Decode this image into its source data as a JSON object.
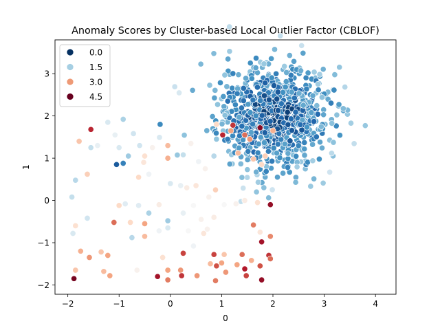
{
  "chart_data": {
    "type": "scatter",
    "title": "Anomaly Scores by Cluster-based Local Outlier Factor (CBLOF)",
    "xlabel": "0",
    "ylabel": "1",
    "xlim": [
      -2.25,
      4.4
    ],
    "ylim": [
      -2.22,
      3.8
    ],
    "xticks": [
      -2,
      -1,
      0,
      1,
      2,
      3,
      4
    ],
    "yticks": [
      -2,
      -1,
      0,
      1,
      2,
      3
    ],
    "grid": false,
    "legend_position": "top-left",
    "colormap": "RdBu_r",
    "score_range": [
      0,
      5
    ],
    "legend": [
      {
        "label": "0.0",
        "score": 0.0,
        "color": "#053061"
      },
      {
        "label": "1.5",
        "score": 1.5,
        "color": "#a6cfe3"
      },
      {
        "label": "3.0",
        "score": 3.0,
        "color": "#ee9a76"
      },
      {
        "label": "4.5",
        "score": 4.5,
        "color": "#67001f"
      }
    ],
    "cluster_estimate": {
      "center": [
        2.0,
        2.0
      ],
      "spread": [
        0.55,
        0.6
      ],
      "count": 900
    },
    "outliers": [
      {
        "x": 1.22,
        "y": 1.78,
        "score": 4.3
      },
      {
        "x": 1.75,
        "y": 1.72,
        "score": 4.8
      },
      {
        "x": 1.45,
        "y": 1.55,
        "score": 3.9
      },
      {
        "x": 1.02,
        "y": 1.55,
        "score": 4.4
      },
      {
        "x": 1.32,
        "y": 1.12,
        "score": 3.3
      },
      {
        "x": 1.85,
        "y": 1.05,
        "score": 3.1
      },
      {
        "x": 1.62,
        "y": 0.98,
        "score": 3.2
      },
      {
        "x": 1.78,
        "y": 0.85,
        "score": 3.0
      },
      {
        "x": 1.55,
        "y": 1.45,
        "score": 3.6
      },
      {
        "x": 2.0,
        "y": 1.65,
        "score": 3.4
      },
      {
        "x": 1.18,
        "y": 1.65,
        "score": 3.5
      },
      {
        "x": 0.9,
        "y": 1.8,
        "score": 3.0
      },
      {
        "x": -1.78,
        "y": 1.4,
        "score": 3.2
      },
      {
        "x": -1.55,
        "y": 1.68,
        "score": 4.4
      },
      {
        "x": -1.55,
        "y": 1.25,
        "score": 1.9
      },
      {
        "x": -1.42,
        "y": 1.3,
        "score": 2.3
      },
      {
        "x": -1.22,
        "y": 1.85,
        "score": 2.1
      },
      {
        "x": -1.08,
        "y": 1.55,
        "score": 2.3
      },
      {
        "x": -1.0,
        "y": 1.25,
        "score": 2.1
      },
      {
        "x": -0.92,
        "y": 1.92,
        "score": 1.7
      },
      {
        "x": -0.72,
        "y": 1.58,
        "score": 2.0
      },
      {
        "x": -0.6,
        "y": 1.3,
        "score": 2.0
      },
      {
        "x": -0.52,
        "y": 0.9,
        "score": 2.8
      },
      {
        "x": -0.35,
        "y": 1.25,
        "score": 2.6
      },
      {
        "x": -0.2,
        "y": 1.8,
        "score": 0.9
      },
      {
        "x": -0.05,
        "y": 1.3,
        "score": 3.3
      },
      {
        "x": -0.05,
        "y": 1.0,
        "score": 3.4
      },
      {
        "x": -1.92,
        "y": 0.08,
        "score": 1.9
      },
      {
        "x": -1.62,
        "y": 0.62,
        "score": 3.1
      },
      {
        "x": -1.62,
        "y": -0.42,
        "score": 2.0
      },
      {
        "x": -1.85,
        "y": 0.48,
        "score": 1.8
      },
      {
        "x": -1.05,
        "y": 0.85,
        "score": 0.4
      },
      {
        "x": -0.92,
        "y": 0.88,
        "score": 0.8
      },
      {
        "x": -0.82,
        "y": 1.05,
        "score": 1.6
      },
      {
        "x": -0.5,
        "y": 1.05,
        "score": 2.9
      },
      {
        "x": -0.62,
        "y": 0.55,
        "score": 3.0
      },
      {
        "x": -0.42,
        "y": 0.62,
        "score": 2.4
      },
      {
        "x": 0.0,
        "y": 0.4,
        "score": 2.1
      },
      {
        "x": 0.2,
        "y": 0.35,
        "score": 2.3
      },
      {
        "x": 0.25,
        "y": 1.08,
        "score": 1.9
      },
      {
        "x": 0.4,
        "y": 1.35,
        "score": 2.6
      },
      {
        "x": 0.55,
        "y": 0.92,
        "score": 2.4
      },
      {
        "x": 0.68,
        "y": 0.75,
        "score": 2.6
      },
      {
        "x": 0.32,
        "y": 0.3,
        "score": 2.7
      },
      {
        "x": 0.5,
        "y": 0.35,
        "score": 2.8
      },
      {
        "x": 0.88,
        "y": 0.25,
        "score": 3.1
      },
      {
        "x": 0.75,
        "y": 0.08,
        "score": 2.6
      },
      {
        "x": 0.25,
        "y": -0.3,
        "score": 2.3
      },
      {
        "x": 0.45,
        "y": -0.12,
        "score": 2.5
      },
      {
        "x": 0.6,
        "y": -0.45,
        "score": 2.6
      },
      {
        "x": 0.85,
        "y": -0.4,
        "score": 2.7
      },
      {
        "x": 1.05,
        "y": -0.1,
        "score": 2.5
      },
      {
        "x": 1.28,
        "y": -0.08,
        "score": 2.6
      },
      {
        "x": 1.45,
        "y": 0.0,
        "score": 2.7
      },
      {
        "x": 1.7,
        "y": -0.05,
        "score": 2.9
      },
      {
        "x": 1.95,
        "y": -0.1,
        "score": 4.7
      },
      {
        "x": 1.62,
        "y": -0.58,
        "score": 3.8
      },
      {
        "x": 1.75,
        "y": -0.75,
        "score": 2.8
      },
      {
        "x": 1.95,
        "y": -0.85,
        "score": 3.7
      },
      {
        "x": -1.85,
        "y": -0.6,
        "score": 2.9
      },
      {
        "x": -1.9,
        "y": -0.78,
        "score": 2.1
      },
      {
        "x": -1.58,
        "y": -1.35,
        "score": 3.6
      },
      {
        "x": -1.75,
        "y": -1.2,
        "score": 3.4
      },
      {
        "x": -1.85,
        "y": -1.65,
        "score": 3.2
      },
      {
        "x": -1.88,
        "y": -1.85,
        "score": 4.9
      },
      {
        "x": -1.35,
        "y": -1.22,
        "score": 3.2
      },
      {
        "x": -1.22,
        "y": -1.3,
        "score": 3.5
      },
      {
        "x": -1.3,
        "y": -1.68,
        "score": 3.3
      },
      {
        "x": -1.18,
        "y": -1.78,
        "score": 3.5
      },
      {
        "x": -1.1,
        "y": -0.52,
        "score": 3.9
      },
      {
        "x": -1.0,
        "y": -0.12,
        "score": 3.0
      },
      {
        "x": -0.88,
        "y": -0.08,
        "score": 2.2
      },
      {
        "x": -0.78,
        "y": -0.52,
        "score": 3.0
      },
      {
        "x": -0.75,
        "y": -0.88,
        "score": 1.8
      },
      {
        "x": -0.5,
        "y": -0.55,
        "score": 3.5
      },
      {
        "x": -0.5,
        "y": -0.85,
        "score": 3.3
      },
      {
        "x": -0.62,
        "y": -0.12,
        "score": 2.2
      },
      {
        "x": -0.42,
        "y": -0.3,
        "score": 1.7
      },
      {
        "x": -0.22,
        "y": -0.1,
        "score": 2.7
      },
      {
        "x": -0.22,
        "y": -0.72,
        "score": 2.4
      },
      {
        "x": -0.05,
        "y": -0.48,
        "score": 1.6
      },
      {
        "x": -0.05,
        "y": -0.65,
        "score": 2.1
      },
      {
        "x": -0.65,
        "y": -1.65,
        "score": 2.6
      },
      {
        "x": -0.15,
        "y": -1.35,
        "score": 2.9
      },
      {
        "x": -0.25,
        "y": -1.8,
        "score": 4.6
      },
      {
        "x": -0.05,
        "y": -1.88,
        "score": 3.8
      },
      {
        "x": -0.05,
        "y": -1.65,
        "score": 3.5
      },
      {
        "x": 0.2,
        "y": -1.65,
        "score": 3.6
      },
      {
        "x": 0.22,
        "y": -1.78,
        "score": 4.3
      },
      {
        "x": 0.25,
        "y": -1.25,
        "score": 4.2
      },
      {
        "x": 0.35,
        "y": -0.72,
        "score": 2.5
      },
      {
        "x": 0.45,
        "y": -1.08,
        "score": 2.4
      },
      {
        "x": 0.52,
        "y": -1.78,
        "score": 3.6
      },
      {
        "x": 0.65,
        "y": -0.78,
        "score": 2.8
      },
      {
        "x": 0.72,
        "y": -0.68,
        "score": 2.6
      },
      {
        "x": 0.78,
        "y": -1.5,
        "score": 3.3
      },
      {
        "x": 0.85,
        "y": -1.28,
        "score": 4.2
      },
      {
        "x": 0.9,
        "y": -1.55,
        "score": 4.1
      },
      {
        "x": 0.88,
        "y": -1.9,
        "score": 3.8
      },
      {
        "x": 1.0,
        "y": -1.48,
        "score": 3.5
      },
      {
        "x": 1.05,
        "y": -1.28,
        "score": 3.2
      },
      {
        "x": 1.08,
        "y": -1.7,
        "score": 3.6
      },
      {
        "x": 1.3,
        "y": -1.52,
        "score": 3.5
      },
      {
        "x": 1.4,
        "y": -1.28,
        "score": 3.9
      },
      {
        "x": 1.45,
        "y": -1.62,
        "score": 4.5
      },
      {
        "x": 1.48,
        "y": -1.78,
        "score": 4.2
      },
      {
        "x": 1.58,
        "y": -1.42,
        "score": 3.4
      },
      {
        "x": 1.78,
        "y": -0.98,
        "score": 4.6
      },
      {
        "x": 1.75,
        "y": -1.55,
        "score": 4.1
      },
      {
        "x": 1.78,
        "y": -1.88,
        "score": 4.7
      },
      {
        "x": 1.92,
        "y": -1.3,
        "score": 4.3
      },
      {
        "x": 1.95,
        "y": -1.38,
        "score": 3.9
      },
      {
        "x": 0.85,
        "y": 1.05,
        "score": 1.8
      },
      {
        "x": 0.9,
        "y": 1.45,
        "score": 1.5
      }
    ]
  }
}
